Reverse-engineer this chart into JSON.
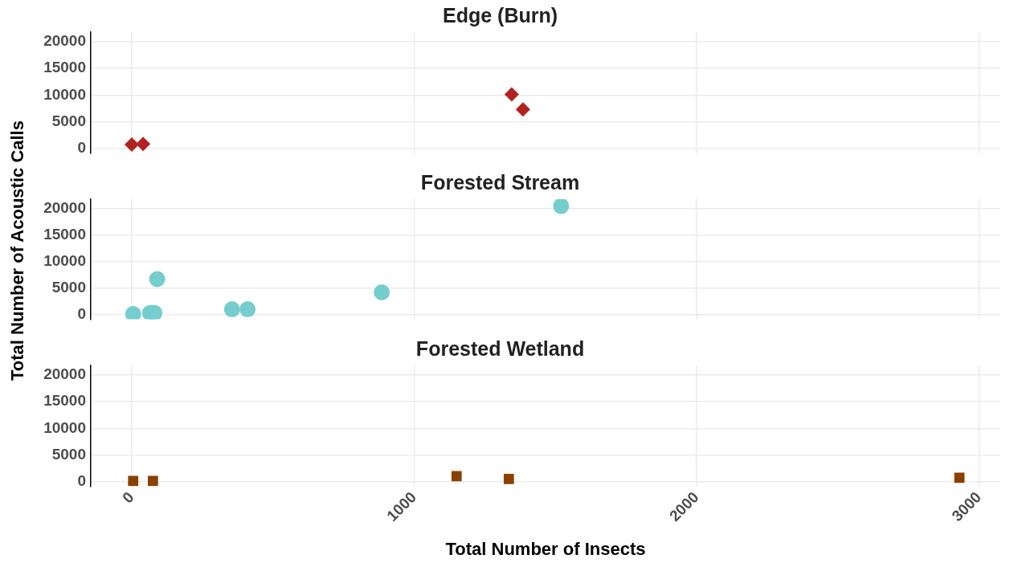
{
  "chart_data": [
    {
      "type": "scatter",
      "title": "Edge (Burn)",
      "x": [
        0,
        40,
        1345,
        1385
      ],
      "values": [
        700,
        800,
        10100,
        7300
      ],
      "color": "#b22222",
      "marker": "diamond",
      "xlim": [
        -145,
        3075
      ],
      "xticks": [
        0,
        1000,
        2000,
        3000
      ],
      "ylim": [
        -900,
        21800
      ],
      "yticks": [
        0,
        5000,
        10000,
        15000,
        20000
      ],
      "grid": true,
      "tick_labels": "y"
    },
    {
      "type": "scatter",
      "title": "Forested Stream",
      "ylabel": "Total Number of Acoustic Calls",
      "x": [
        5,
        65,
        80,
        90,
        355,
        410,
        885,
        1520
      ],
      "values": [
        100,
        300,
        300,
        6700,
        1000,
        1000,
        4200,
        20500
      ],
      "color": "#76cdcd",
      "marker": "circle",
      "xlim": [
        -145,
        3075
      ],
      "xticks": [
        0,
        1000,
        2000,
        3000
      ],
      "ylim": [
        -900,
        21800
      ],
      "yticks": [
        0,
        5000,
        10000,
        15000,
        20000
      ],
      "grid": true,
      "tick_labels": "y"
    },
    {
      "type": "scatter",
      "title": "Forested Wetland",
      "xlabel": "Total Number of Insects",
      "x": [
        5,
        75,
        1150,
        1335,
        2930
      ],
      "values": [
        100,
        100,
        1000,
        500,
        700
      ],
      "color": "#8b4000",
      "marker": "square",
      "xlim": [
        -145,
        3075
      ],
      "xticks": [
        0,
        1000,
        2000,
        3000
      ],
      "ylim": [
        -900,
        21800
      ],
      "yticks": [
        0,
        5000,
        10000,
        15000,
        20000
      ],
      "grid": true
    }
  ]
}
